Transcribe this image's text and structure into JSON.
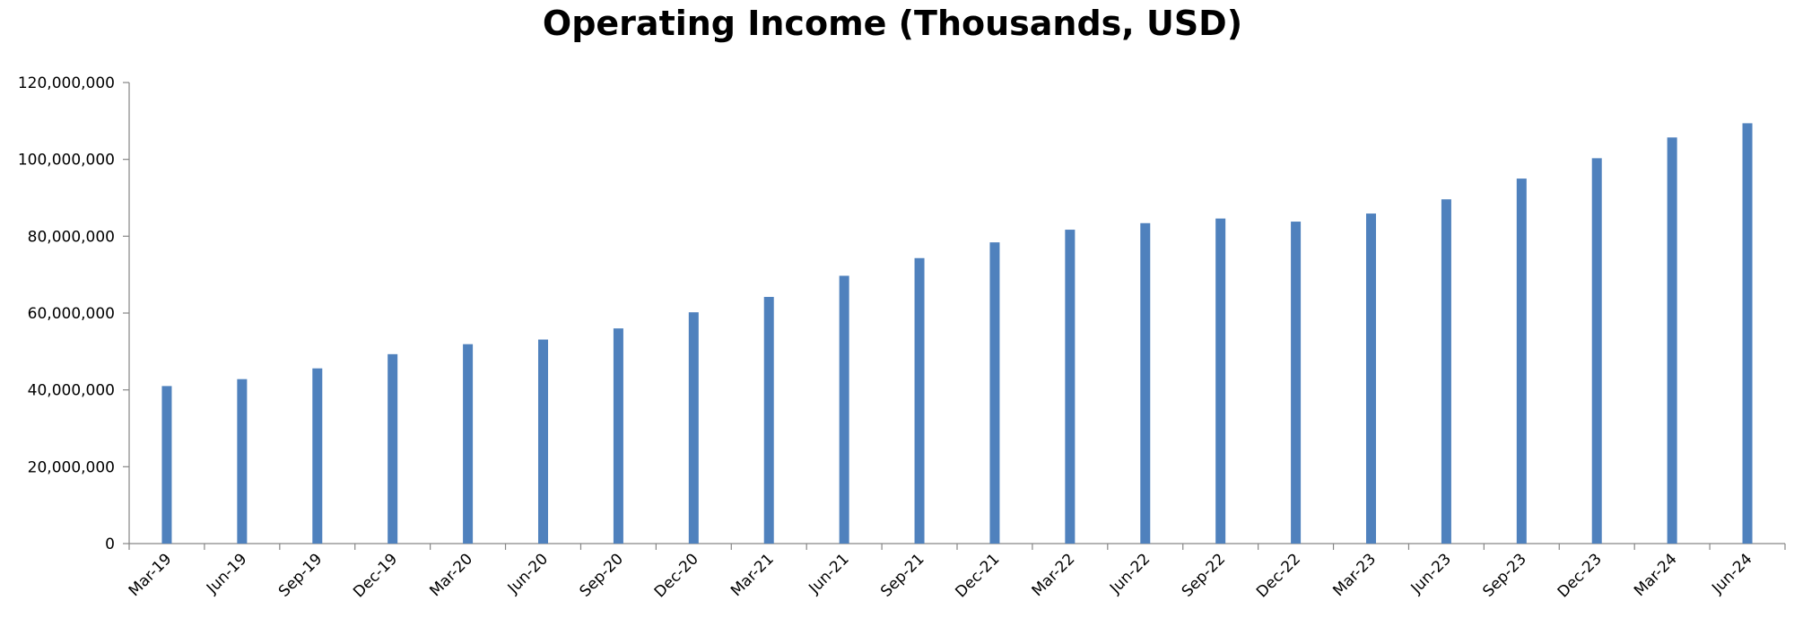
{
  "chart_data": {
    "type": "bar",
    "title": "Operating Income (Thousands, USD)",
    "xlabel": "",
    "ylabel": "",
    "categories": [
      "Mar-19",
      "Jun-19",
      "Sep-19",
      "Dec-19",
      "Mar-20",
      "Jun-20",
      "Sep-20",
      "Dec-20",
      "Mar-21",
      "Jun-21",
      "Sep-21",
      "Dec-21",
      "Mar-22",
      "Jun-22",
      "Sep-22",
      "Dec-22",
      "Mar-23",
      "Jun-23",
      "Sep-23",
      "Dec-23",
      "Mar-24",
      "Jun-24"
    ],
    "series": [
      {
        "values": [
          41000000,
          42800000,
          45600000,
          49300000,
          51900000,
          53100000,
          56000000,
          60200000,
          64200000,
          69700000,
          74300000,
          78400000,
          81700000,
          83400000,
          84600000,
          83800000,
          85900000,
          89600000,
          95000000,
          100300000,
          105700000,
          109400000
        ],
        "color": "#4f81bd"
      }
    ],
    "ylim": [
      0,
      120000000
    ],
    "yticks": [
      0,
      20000000,
      40000000,
      60000000,
      80000000,
      100000000,
      120000000
    ],
    "ytick_labels": [
      "0",
      "20,000,000",
      "40,000,000",
      "60,000,000",
      "80,000,000",
      "100,000,000",
      "120,000,000"
    ],
    "grid": false,
    "legend": "none"
  }
}
